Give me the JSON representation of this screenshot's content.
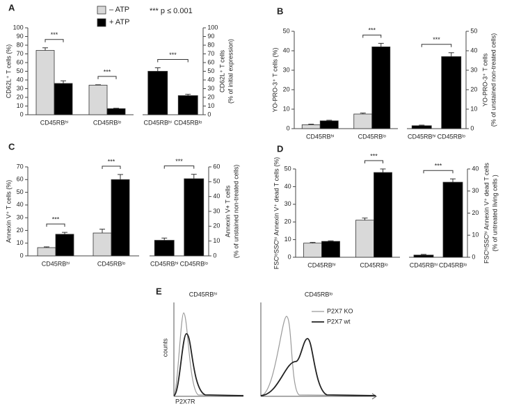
{
  "chart_data": [
    {
      "type": "bar",
      "panel": "A",
      "categories": [
        "CD45RBʰⁱ",
        "CD45RBˡᵒ"
      ],
      "series": [
        {
          "name": "– ATP",
          "color": "#d9d9d9",
          "values": [
            74,
            34
          ],
          "errors": [
            3,
            0.5
          ]
        },
        {
          "name": "+ ATP",
          "color": "#000000",
          "values": [
            36,
            7
          ],
          "errors": [
            3,
            0.5
          ]
        }
      ],
      "legend": true,
      "legend_note": "*** p ≤ 0.001",
      "ylim": [
        0,
        100
      ],
      "yticks": [
        0,
        10,
        20,
        30,
        40,
        50,
        60,
        70,
        80,
        90,
        100
      ],
      "ylabel": [
        "CD62L⁺ T cells (%)"
      ],
      "significance": [
        "***",
        "***"
      ]
    },
    {
      "type": "bar",
      "categories": [
        "CD45RBʰⁱ",
        "CD45RBˡᵒ"
      ],
      "color": "#000000",
      "values": [
        50,
        22
      ],
      "errors": [
        4,
        1.5
      ],
      "ylim": [
        0,
        100
      ],
      "yticks": [
        0,
        10,
        20,
        30,
        40,
        50,
        60,
        70,
        80,
        90,
        100
      ],
      "ylabel": [
        "CD62L⁺ T cells",
        "(% of initial expression)"
      ],
      "significance_span": "***"
    },
    {
      "type": "bar",
      "panel": "B",
      "categories": [
        "CD45RBʰⁱ",
        "CD45RBˡᵒ"
      ],
      "series": [
        {
          "name": "– ATP",
          "color": "#d9d9d9",
          "values": [
            2,
            7.5
          ],
          "errors": [
            0.3,
            0.5
          ]
        },
        {
          "name": "+ ATP",
          "color": "#000000",
          "values": [
            4,
            42
          ],
          "errors": [
            0.3,
            1.8
          ]
        }
      ],
      "ylim": [
        0,
        50
      ],
      "yticks": [
        0,
        10,
        20,
        30,
        40,
        50
      ],
      "ylabel": [
        "YO-PRO-3⁺ T cells (%)"
      ],
      "significance": [
        null,
        "***"
      ]
    },
    {
      "type": "bar",
      "categories": [
        "CD45RBʰⁱ",
        "CD45RBˡᵒ"
      ],
      "color": "#000000",
      "values": [
        1.5,
        37
      ],
      "errors": [
        0.3,
        2
      ],
      "ylim": [
        0,
        50
      ],
      "yticks": [
        0,
        10,
        20,
        30,
        40,
        50
      ],
      "ylabel": [
        "YO-PRO-3⁺ T cells",
        "(% of unstained non-treated cells)"
      ],
      "significance_span": "***"
    },
    {
      "type": "bar",
      "panel": "C",
      "categories": [
        "CD45RBʰⁱ",
        "CD45RBˡᵒ"
      ],
      "series": [
        {
          "name": "– ATP",
          "color": "#d9d9d9",
          "values": [
            6.5,
            18
          ],
          "errors": [
            0.6,
            3
          ]
        },
        {
          "name": "+ ATP",
          "color": "#000000",
          "values": [
            17,
            60
          ],
          "errors": [
            1.5,
            4
          ]
        }
      ],
      "ylim": [
        0,
        70
      ],
      "yticks": [
        0,
        10,
        20,
        30,
        40,
        50,
        60,
        70
      ],
      "ylabel": [
        "Annexin V⁺ T cells (%)"
      ],
      "significance": [
        "***",
        "***"
      ]
    },
    {
      "type": "bar",
      "categories": [
        "CD45RBʰⁱ",
        "CD45RBˡᵒ"
      ],
      "color": "#000000",
      "values": [
        10.5,
        52
      ],
      "errors": [
        1.5,
        3
      ],
      "ylim": [
        0,
        60
      ],
      "yticks": [
        0,
        10,
        20,
        30,
        40,
        50,
        60
      ],
      "ylabel": [
        "Annexin V+ T cells",
        "(% of unstained non-treated cells)"
      ],
      "significance_span": "***"
    },
    {
      "type": "bar",
      "panel": "D",
      "categories": [
        "CD45RBʰⁱ",
        "CD45RBˡᵒ"
      ],
      "series": [
        {
          "name": "– ATP",
          "color": "#d9d9d9",
          "values": [
            8,
            21
          ],
          "errors": [
            0.4,
            1.2
          ]
        },
        {
          "name": "+ ATP",
          "color": "#000000",
          "values": [
            9,
            48
          ],
          "errors": [
            0.3,
            2
          ]
        }
      ],
      "ylim": [
        0,
        50
      ],
      "yticks": [
        0,
        10,
        20,
        30,
        40,
        50
      ],
      "ylabel": [
        "FSCˡᵒSSCʰⁱ Annexin V⁺ dead T cells (%)"
      ],
      "significance": [
        null,
        "***"
      ]
    },
    {
      "type": "bar",
      "categories": [
        "CD45RBʰⁱ",
        "CD45RBˡᵒ"
      ],
      "color": "#000000",
      "values": [
        1,
        34
      ],
      "errors": [
        0.3,
        1.5
      ],
      "ylim": [
        0,
        40
      ],
      "yticks": [
        0,
        10,
        20,
        30,
        40
      ],
      "ylabel": [
        "FSCˡᵒSSCʰⁱ Annexin V⁺ dead T cells",
        "(% of untreated living cells )"
      ],
      "significance_span": "***"
    }
  ],
  "panel_e": {
    "letter": "E",
    "titles": [
      "CD45RBʰⁱ",
      "CD45RBˡᵒ"
    ],
    "y_label": "counts",
    "x_label": "P2X7R",
    "legend": [
      "P2X7 KO",
      "P2X7 wt"
    ]
  }
}
